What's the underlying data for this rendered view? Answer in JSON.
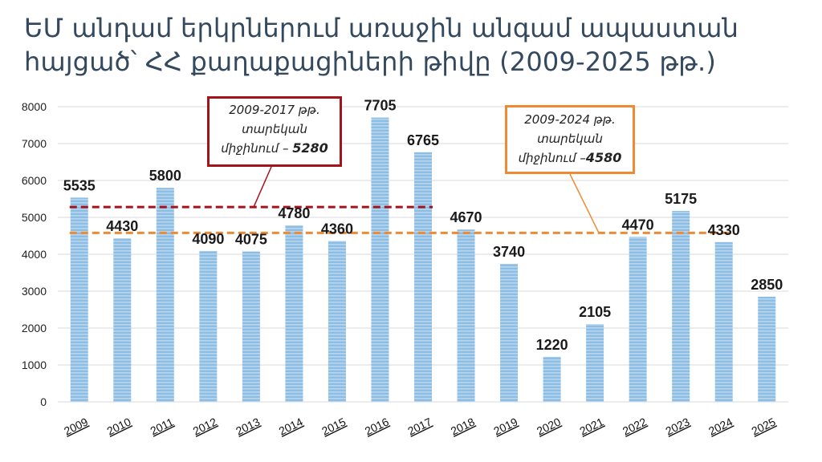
{
  "title": "ԵՄ անդամ երկրներում առաջին անգամ ապաստան հայցած՝ ՀՀ քաղաքացիների թիվը (2009-2025 թթ.)",
  "annotations": [
    {
      "line1": "2009-2017 թթ.",
      "line2": "տարեկան",
      "line3_prefix": "միջինում –",
      "value": "5280"
    },
    {
      "line1": "2009-2024 թթ.",
      "line2": "տարեկան",
      "line3_prefix": "միջինում –",
      "value": "4580"
    }
  ],
  "colors": {
    "bar": "#8dbde3",
    "bar_stripe": "#b7d7f0",
    "avg_2009_2017": "#a3131b",
    "avg_2009_2024": "#ef8a34",
    "grid": "#d9d9d9",
    "title": "#34495e"
  },
  "chart_data": {
    "type": "bar",
    "categories": [
      "2009",
      "2010",
      "2011",
      "2012",
      "2013",
      "2014",
      "2015",
      "2016",
      "2017",
      "2018",
      "2019",
      "2020",
      "2021",
      "2022",
      "2023",
      "2024",
      "2025"
    ],
    "values": [
      5535,
      4430,
      5800,
      4090,
      4075,
      4780,
      4360,
      7705,
      6765,
      4670,
      3740,
      1220,
      2105,
      4470,
      5175,
      4330,
      2850
    ],
    "ylim": [
      0,
      8000
    ],
    "yticks": [
      0,
      1000,
      2000,
      3000,
      4000,
      5000,
      6000,
      7000,
      8000
    ],
    "grid": true,
    "reference_lines": [
      {
        "value": 5280,
        "from": "2009",
        "to": "2017",
        "style": "dashed",
        "color": "#a3131b"
      },
      {
        "value": 4580,
        "from": "2009",
        "to": "2024",
        "style": "dashed",
        "color": "#ef8a34"
      }
    ]
  }
}
